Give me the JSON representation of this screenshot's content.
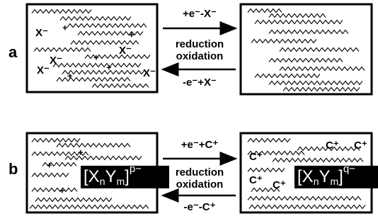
{
  "panel_a": {
    "label": "a",
    "forward": "+e⁻-X⁻",
    "reduction": "reduction",
    "oxidation": "oxidation",
    "reverse": "-e⁻+X⁻",
    "left_box": {
      "anions": [
        "X⁻",
        "X⁻",
        "X⁻",
        "X⁻",
        "X⁻"
      ],
      "charges": [
        "+",
        "+",
        "+",
        "+",
        "+"
      ]
    }
  },
  "panel_b": {
    "label": "b",
    "forward": "+e⁻+C⁺",
    "reduction": "reduction",
    "oxidation": "oxidation",
    "reverse": "-e⁻-C⁺",
    "left_box": {
      "charges": [
        "+",
        "+",
        "+"
      ],
      "complex": {
        "open": "[",
        "x": "X",
        "n": "n",
        "y": "Y",
        "m": "m",
        "close": "]",
        "charge": "p−"
      }
    },
    "right_box": {
      "cations": [
        "C⁺",
        "C⁺",
        "C⁺",
        "C⁺",
        "C⁺"
      ],
      "complex": {
        "open": "[",
        "x": "X",
        "n": "n",
        "y": "Y",
        "m": "m",
        "close": "]",
        "charge": "q−"
      }
    }
  }
}
